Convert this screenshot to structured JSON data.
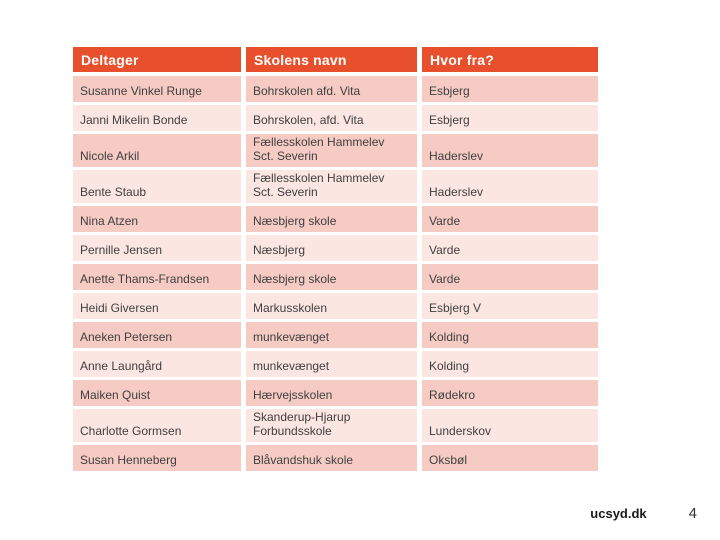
{
  "table": {
    "columns": [
      {
        "label": "Deltager"
      },
      {
        "label": "Skolens navn"
      },
      {
        "label": "Hvor fra?"
      }
    ],
    "rows": [
      {
        "deltager": "Susanne Vinkel Runge",
        "skolens_navn": "Bohrskolen afd. Vita",
        "hvor_fra": "Esbjerg"
      },
      {
        "deltager": "Janni Mikelin Bonde",
        "skolens_navn": "Bohrskolen, afd. Vita",
        "hvor_fra": "Esbjerg"
      },
      {
        "deltager": "Nicole Arkil",
        "skolens_navn": "Fællesskolen Hammelev\nSct. Severin",
        "hvor_fra": "Haderslev"
      },
      {
        "deltager": "Bente Staub",
        "skolens_navn": "Fællesskolen Hammelev\nSct. Severin",
        "hvor_fra": "Haderslev"
      },
      {
        "deltager": "Nina Atzen",
        "skolens_navn": "Næsbjerg skole",
        "hvor_fra": "Varde"
      },
      {
        "deltager": "Pernille Jensen",
        "skolens_navn": "Næsbjerg",
        "hvor_fra": "Varde"
      },
      {
        "deltager": "Anette Thams-Frandsen",
        "skolens_navn": "Næsbjerg skole",
        "hvor_fra": "Varde"
      },
      {
        "deltager": "Heidi Giversen",
        "skolens_navn": "Markusskolen",
        "hvor_fra": "Esbjerg V"
      },
      {
        "deltager": "Aneken Petersen",
        "skolens_navn": "munkevænget",
        "hvor_fra": "Kolding"
      },
      {
        "deltager": "Anne Laungård",
        "skolens_navn": "munkevænget",
        "hvor_fra": "Kolding"
      },
      {
        "deltager": "Maiken Quist",
        "skolens_navn": "Hærvejsskolen",
        "hvor_fra": "Rødekro"
      },
      {
        "deltager": "Charlotte Gormsen",
        "skolens_navn": "Skanderup-Hjarup\nForbundsskole",
        "hvor_fra": "Lunderskov"
      },
      {
        "deltager": "Susan Henneberg",
        "skolens_navn": "Blåvandshuk skole",
        "hvor_fra": "Oksbøl"
      }
    ]
  },
  "footer": {
    "site": "ucsyd.dk",
    "page": "4"
  },
  "colors": {
    "accent": "#E8502D",
    "row_dark": "#F6CBC4",
    "row_light": "#FBE6E2",
    "header_text": "#FFFFFF",
    "body_text": "#404040",
    "footer_text": "#1A1A1A"
  }
}
